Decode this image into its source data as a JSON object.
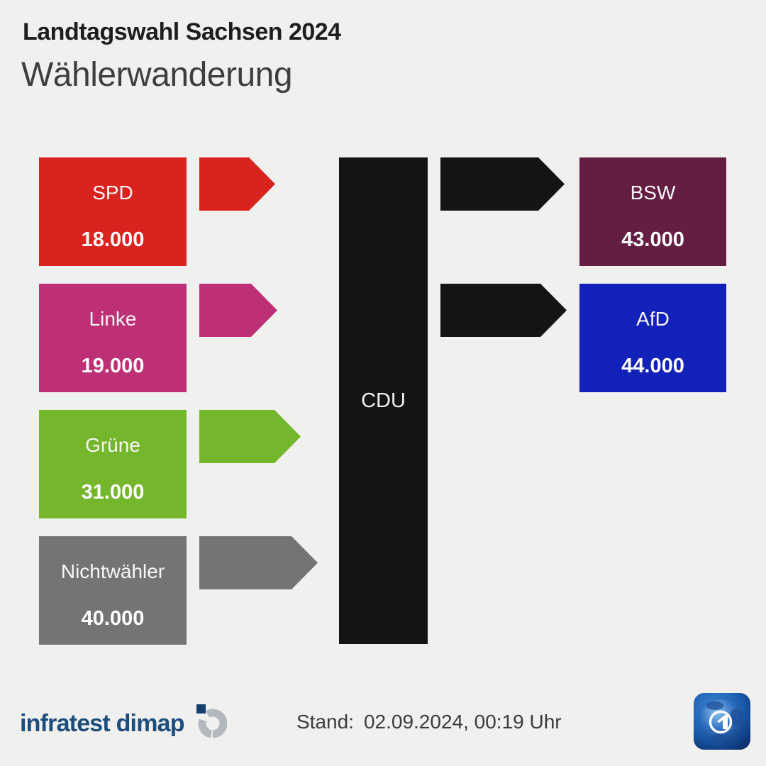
{
  "header": {
    "kicker": "Landtagswahl Sachsen 2024",
    "title": "Wählerwanderung"
  },
  "chart_data": {
    "type": "sankey",
    "title": "Wählerwanderung",
    "subtitle": "Landtagswahl Sachsen 2024",
    "direction": "left-to-right",
    "center": {
      "party": "CDU",
      "color": "#141414",
      "text_color": "#f2f2f2"
    },
    "inflows": [
      {
        "party": "SPD",
        "value": 18000,
        "display": "18.000",
        "color": "#d9231f"
      },
      {
        "party": "Linke",
        "value": 19000,
        "display": "19.000",
        "color": "#be3075"
      },
      {
        "party": "Grüne",
        "value": 31000,
        "display": "31.000",
        "color": "#74b62c"
      },
      {
        "party": "Nichtwähler",
        "value": 40000,
        "display": "40.000",
        "color": "#747474"
      }
    ],
    "outflows": [
      {
        "party": "BSW",
        "value": 43000,
        "display": "43.000",
        "color": "#641e43"
      },
      {
        "party": "AfD",
        "value": 44000,
        "display": "44.000",
        "color": "#1222b8"
      }
    ],
    "background": "#f0f0ef"
  },
  "footer": {
    "source_label": "infratest dimap",
    "stand_label": "Stand:",
    "stand_value": "02.09.2024, 00:19 Uhr"
  },
  "icons": {
    "source_mark": "infratest-dimap-mark",
    "broadcaster": "ard-das-erste-logo"
  }
}
